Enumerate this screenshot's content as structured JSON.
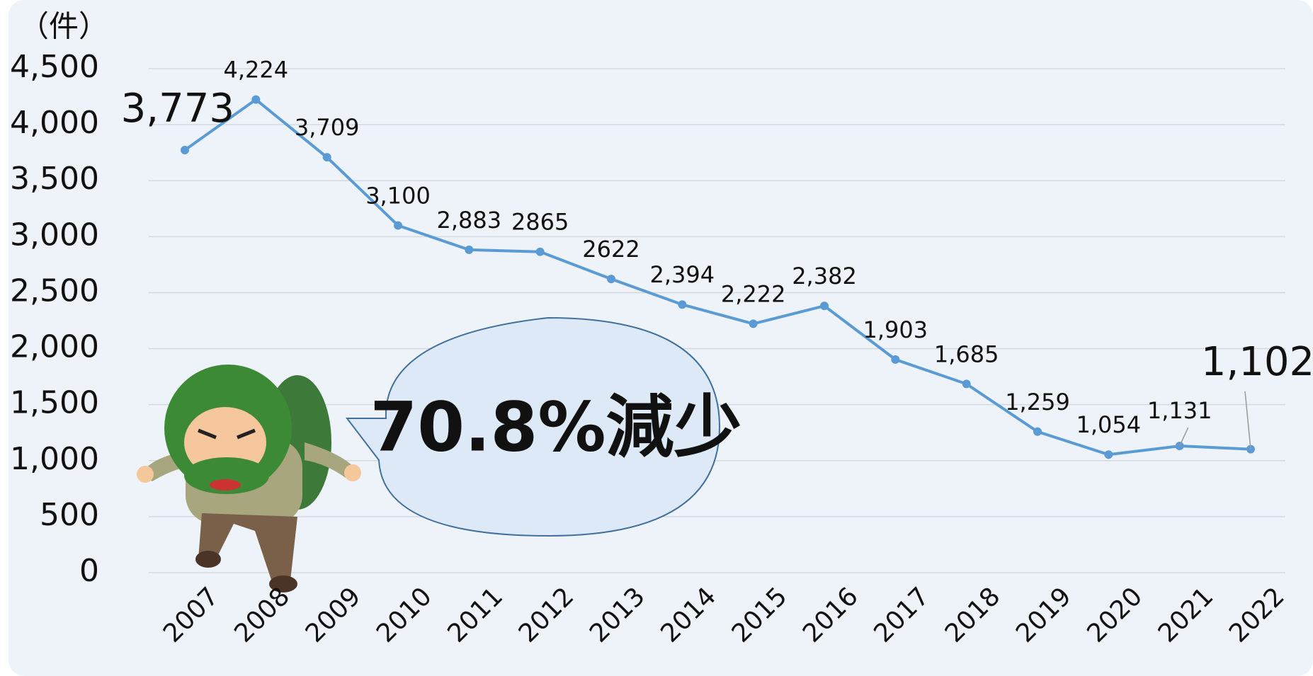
{
  "chart_data": {
    "type": "line",
    "ylabel": "（件）",
    "categories": [
      "2007",
      "2008",
      "2009",
      "2010",
      "2011",
      "2012",
      "2013",
      "2014",
      "2015",
      "2016",
      "2017",
      "2018",
      "2019",
      "2020",
      "2021",
      "2022"
    ],
    "values": [
      3773,
      4224,
      3709,
      3100,
      2883,
      2865,
      2622,
      2394,
      2222,
      2382,
      1903,
      1685,
      1259,
      1054,
      1131,
      1102
    ],
    "value_labels": [
      "3,773",
      "4,224",
      "3,709",
      "3,100",
      "2,883",
      "2865",
      "2622",
      "2,394",
      "2,222",
      "2,382",
      "1,903",
      "1,685",
      "1,259",
      "1,054",
      "1,131",
      "1,102"
    ],
    "color": "#5b9bd5",
    "ylim": [
      0,
      4500
    ],
    "yticks": [
      0,
      500,
      {
        "value": 1000,
        "label": "1,000"
      },
      {
        "value": 1500,
        "label": "1,500"
      },
      {
        "value": 2000,
        "label": "2,000"
      },
      {
        "value": 2500,
        "label": "2,500"
      },
      {
        "value": 3000,
        "label": "3,000"
      },
      {
        "value": 3500,
        "label": "3,500"
      },
      {
        "value": 4000,
        "label": "4,000"
      },
      {
        "value": 4500,
        "label": "4,500"
      }
    ],
    "grid": true,
    "annotation": "70.8%減少"
  }
}
